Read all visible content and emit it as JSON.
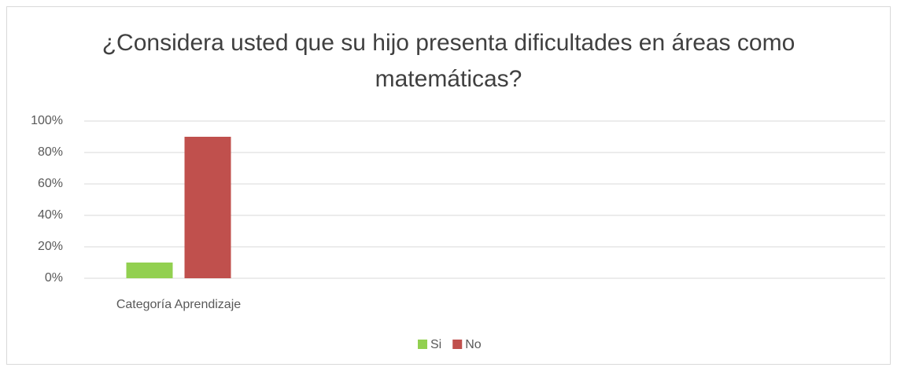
{
  "chart_data": {
    "type": "bar",
    "title": "¿Considera usted que su hijo presenta dificultades en áreas como matemáticas?",
    "categories": [
      "Categoría Aprendizaje"
    ],
    "series": [
      {
        "name": "Si",
        "color": "#92d050",
        "values": [
          10
        ]
      },
      {
        "name": "No",
        "color": "#c0504d",
        "values": [
          90
        ]
      }
    ],
    "ylim": [
      0,
      100
    ],
    "yticks": [
      {
        "value": 0,
        "label": "0%"
      },
      {
        "value": 20,
        "label": "20%"
      },
      {
        "value": 40,
        "label": "40%"
      },
      {
        "value": 60,
        "label": "60%"
      },
      {
        "value": 80,
        "label": "80%"
      },
      {
        "value": 100,
        "label": "100%"
      }
    ],
    "grid": true,
    "legend": "bottom"
  }
}
